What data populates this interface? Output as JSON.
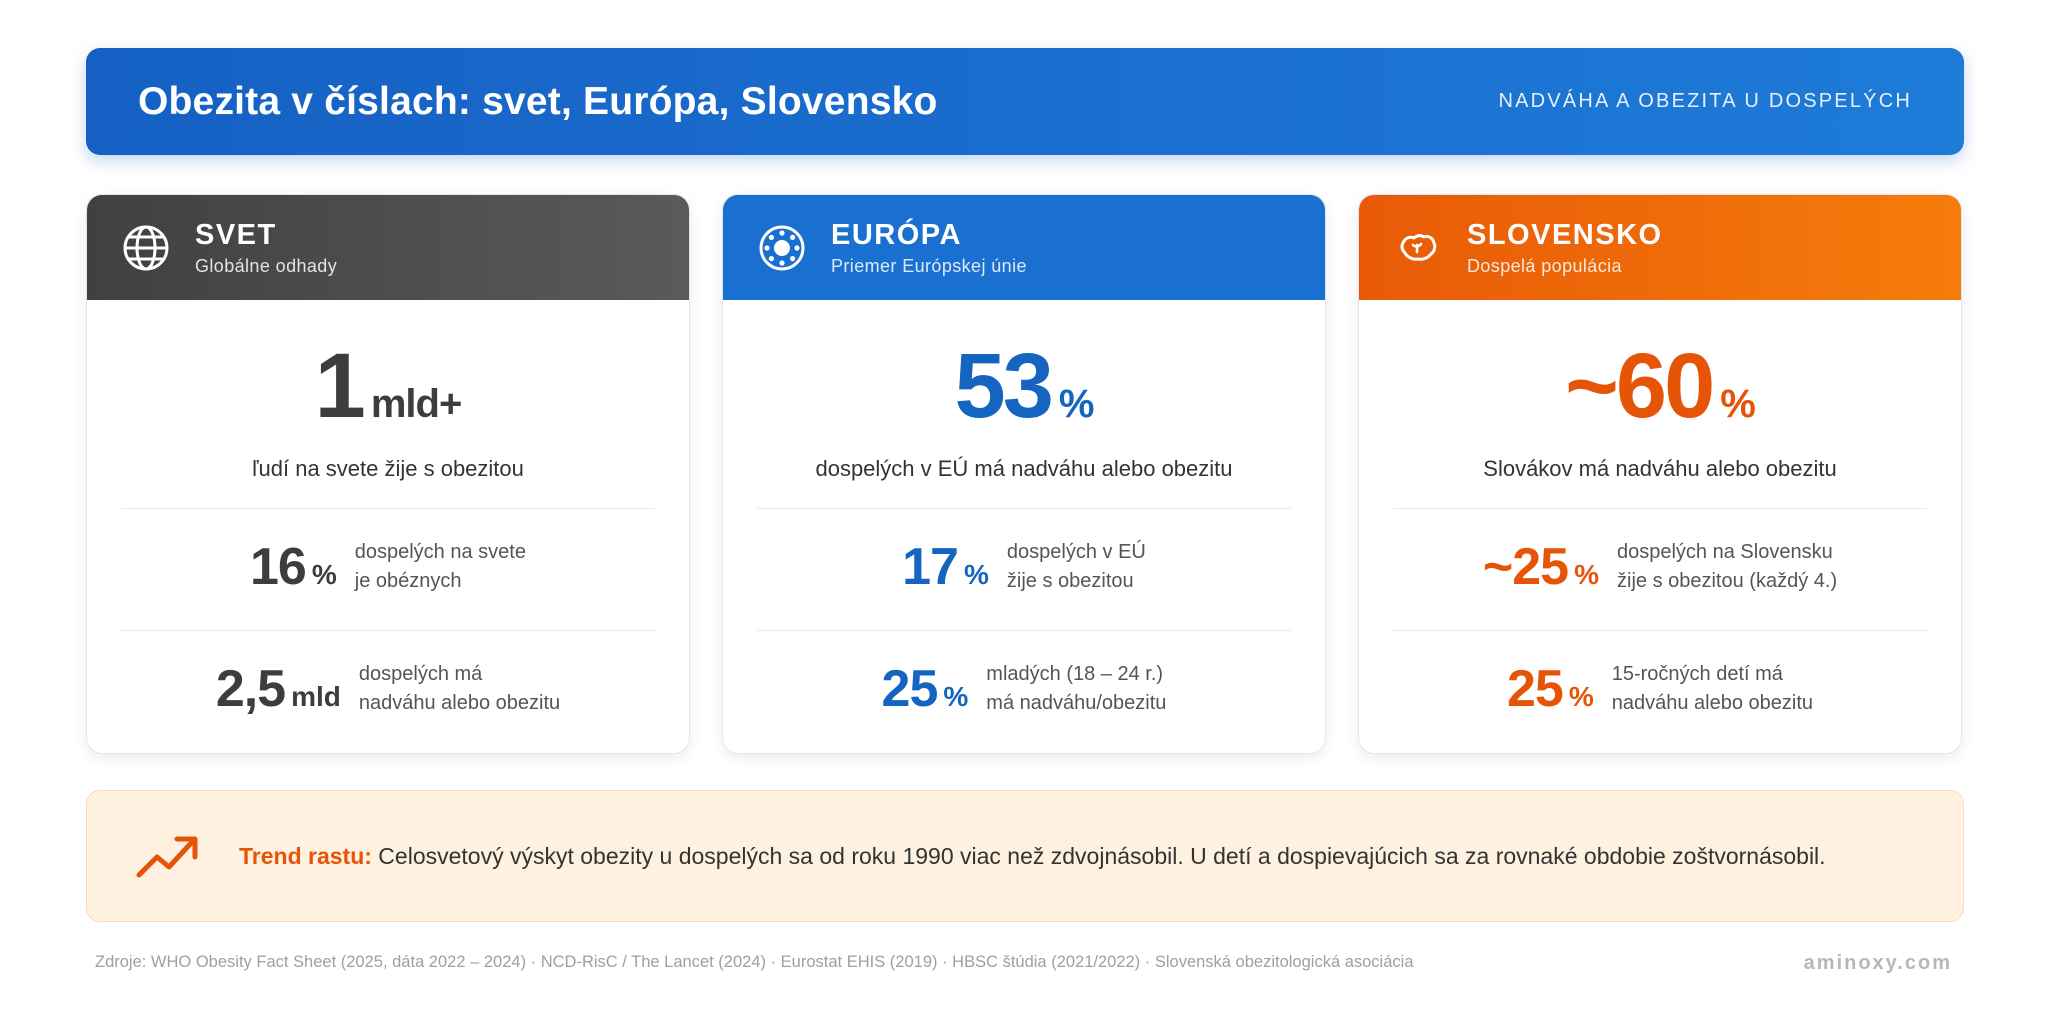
{
  "header": {
    "title": "Obezita v číslach: svet, Európa, Slovensko",
    "subtitle": "NADVÁHA A OBEZITA U DOSPELÝCH"
  },
  "cards": [
    {
      "name": "SVET",
      "desc": "Globálne odhady",
      "icon": "globe-icon",
      "color": "#3d3d3d",
      "main": {
        "value": "1",
        "unit": "mld+",
        "label": "ľudí na svete žije s obezitou"
      },
      "stats": [
        {
          "value": "16",
          "unit": "%",
          "line1": "dospelých na svete",
          "line2": "je obéznych"
        },
        {
          "value": "2,5",
          "unit": "mld",
          "line1": "dospelých má",
          "line2": "nadváhu alebo obezitu"
        }
      ]
    },
    {
      "name": "EURÓPA",
      "desc": "Priemer Európskej únie",
      "icon": "eu-stars-icon",
      "color": "#1565c0",
      "main": {
        "value": "53",
        "unit": "%",
        "label": "dospelých v EÚ má nadváhu alebo obezitu"
      },
      "stats": [
        {
          "value": "17",
          "unit": "%",
          "line1": "dospelých v EÚ",
          "line2": "žije s obezitou"
        },
        {
          "value": "25",
          "unit": "%",
          "line1": "mladých (18 – 24 r.)",
          "line2": "má nadváhu/obezitu"
        }
      ]
    },
    {
      "name": "SLOVENSKO",
      "desc": "Dospelá populácia",
      "icon": "slovakia-map-icon",
      "color": "#e65408",
      "main": {
        "value": "~60",
        "unit": "%",
        "label": "Slovákov má nadváhu alebo obezitu"
      },
      "stats": [
        {
          "value": "~25",
          "unit": "%",
          "line1": "dospelých na Slovensku",
          "line2": "žije s obezitou (každý 4.)"
        },
        {
          "value": "25",
          "unit": "%",
          "line1": "15-ročných detí má",
          "line2": "nadváhu alebo obezitu"
        }
      ]
    }
  ],
  "trend": {
    "icon": "trending-up-icon",
    "label": "Trend rastu:",
    "text": " Celosvetový výskyt obezity u dospelých sa od roku 1990 viac než zdvojnásobil. U detí a dospievajúcich sa za rovnaké obdobie zoštvornásobil."
  },
  "footer": {
    "sources": "Zdroje: WHO Obesity Fact Sheet (2025, dáta 2022 – 2024) · NCD-RisC / The Lancet (2024) · Eurostat EHIS (2019) · HBSC štúdia (2021/2022) · Slovenská obezitologická asociácia",
    "brand": "aminoxy.com"
  }
}
